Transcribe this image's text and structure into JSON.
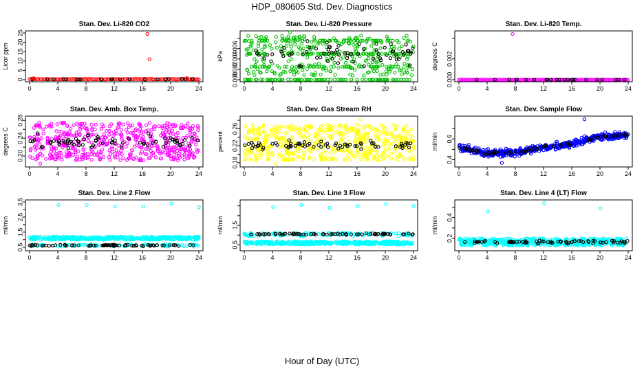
{
  "page": {
    "title": "HDP_080605  Std. Dev. Diagnostics",
    "xlabel": "Hour of Day (UTC)"
  },
  "chart_data": [
    {
      "type": "scatter",
      "title": "Stan. Dev. Li-820 CO2",
      "ylabel": "Licor ppm",
      "xlim": [
        0,
        24
      ],
      "xticks": [
        0,
        4,
        8,
        12,
        16,
        20,
        24
      ],
      "ylim": [
        0,
        25
      ],
      "yticks": [
        0,
        5,
        10,
        15,
        20,
        25
      ],
      "color": "#ff0000",
      "baseline": {
        "mean": 0.3,
        "spread": 0.3,
        "count": 120
      },
      "extra_points": [
        {
          "x": 16.7,
          "y": 24.5
        },
        {
          "x": 17.0,
          "y": 11.0
        },
        {
          "x": 22.3,
          "y": 0.9
        },
        {
          "x": 0.6,
          "y": 0.8
        }
      ],
      "black": {
        "mean": 0.2,
        "spread": 0.2,
        "count": 22
      }
    },
    {
      "type": "scatter",
      "title": "Stan. Dev. Li-820 Pressure",
      "ylabel": "kPa",
      "xlim": [
        0,
        24
      ],
      "xticks": [
        0,
        4,
        8,
        12,
        16,
        20,
        24
      ],
      "ylim": [
        0,
        0.009
      ],
      "yticks": [
        0,
        0.002,
        0.004,
        0.006,
        0.008
      ],
      "ytick_labels": [
        "0.000",
        "0.002",
        "0.004",
        "0.006",
        ""
      ],
      "color": "#00c000",
      "levels": [
        0,
        0.0025,
        0.005,
        0.0075
      ],
      "band": {
        "count": 420,
        "min": 0.0008,
        "max": 0.0085
      },
      "floor_count": 90,
      "black": {
        "mean": 0.005,
        "spread": 0.0035,
        "count": 70
      },
      "extra_points": [
        {
          "x": 6.5,
          "y": 0.0092
        }
      ]
    },
    {
      "type": "scatter",
      "title": "Stan. Dev. Li-820 Temp.",
      "ylabel": "degrees C",
      "xlim": [
        0,
        24
      ],
      "xticks": [
        0,
        4,
        8,
        12,
        16,
        20,
        24
      ],
      "ylim": [
        0,
        0.0045
      ],
      "yticks": [
        0,
        0.002,
        0.004
      ],
      "ytick_labels": [
        "0.000",
        "0.002",
        ""
      ],
      "color": "#ff00ff",
      "baseline": {
        "mean": 0.0,
        "spread": 1e-05,
        "count": 140
      },
      "extra_points": [
        {
          "x": 7.6,
          "y": 0.0044
        }
      ],
      "black": {
        "mean": 0.0,
        "spread": 1e-05,
        "count": 25
      }
    },
    {
      "type": "scatter",
      "title": "Stan. Dev. Amb. Box Temp.",
      "ylabel": "degrees C",
      "xlim": [
        0,
        24
      ],
      "xticks": [
        0,
        4,
        8,
        12,
        16,
        20,
        24
      ],
      "ylim": [
        0.18,
        0.285
      ],
      "yticks": [
        0.2,
        0.22,
        0.24,
        0.26,
        0.28
      ],
      "ytick_labels": [
        "0.20",
        "",
        "0.24",
        "",
        "0.28"
      ],
      "color": "#ff00ff",
      "band": {
        "count": 520,
        "min": 0.19,
        "max": 0.275
      },
      "black": {
        "mean": 0.233,
        "spread": 0.02,
        "count": 70
      },
      "extra_points": [
        {
          "x": 1.5,
          "y": 0.183
        }
      ]
    },
    {
      "type": "scatter",
      "title": "Stan. Dev. Gas Stream RH",
      "ylabel": "percent",
      "xlim": [
        0,
        24
      ],
      "xticks": [
        0,
        4,
        8,
        12,
        16,
        20,
        24
      ],
      "ylim": [
        0.175,
        0.285
      ],
      "yticks": [
        0.18,
        0.2,
        0.22,
        0.24,
        0.26,
        0.28
      ],
      "ytick_labels": [
        "0.18",
        "",
        "0.22",
        "",
        "0.26",
        ""
      ],
      "color": "#ffff00",
      "band": {
        "count": 520,
        "min": 0.185,
        "max": 0.27
      },
      "black": {
        "mean": 0.222,
        "spread": 0.015,
        "count": 70
      },
      "extra_points": [
        {
          "x": 4.5,
          "y": 0.177
        },
        {
          "x": 16.5,
          "y": 0.282
        }
      ]
    },
    {
      "type": "scatter",
      "title": "Stan. Dev. Sample Flow",
      "ylabel": "ml/min",
      "xlim": [
        0,
        24
      ],
      "xticks": [
        0,
        4,
        8,
        12,
        16,
        20,
        24
      ],
      "ylim": [
        0.35,
        0.8
      ],
      "yticks": [
        0.4,
        0.5,
        0.6,
        0.7
      ],
      "ytick_labels": [
        "0.4",
        "",
        "0.6",
        ""
      ],
      "color": "#0000ff",
      "trend": [
        [
          0,
          0.52
        ],
        [
          4,
          0.46
        ],
        [
          8,
          0.47
        ],
        [
          12,
          0.52
        ],
        [
          16,
          0.55
        ],
        [
          20,
          0.62
        ],
        [
          24,
          0.64
        ]
      ],
      "trend_spread": 0.05,
      "band_count": 520,
      "black": {
        "spread": 0.02,
        "count": 70
      },
      "extra_points": [
        {
          "x": 17.8,
          "y": 0.79
        },
        {
          "x": 6.1,
          "y": 0.37
        }
      ]
    },
    {
      "type": "scatter",
      "title": "Stan. Dev. Line 2 Flow",
      "ylabel": "ml/min",
      "xlim": [
        0,
        24
      ],
      "xticks": [
        0,
        4,
        8,
        12,
        16,
        20,
        24
      ],
      "ylim": [
        0.4,
        3.5
      ],
      "yticks": [
        0.5,
        1.0,
        1.5,
        2.0,
        2.5,
        3.0,
        3.5
      ],
      "ytick_labels": [
        "0.5",
        "",
        "1.5",
        "",
        "2.5",
        "",
        "3.5"
      ],
      "color": "#00ffff",
      "band": {
        "count": 420,
        "min": 1.0,
        "max": 1.2
      },
      "black": {
        "mean": 0.62,
        "spread": 0.06,
        "count": 70
      },
      "band2": {
        "count": 80,
        "min": 0.55,
        "max": 0.7
      },
      "extra_points": [
        {
          "x": 4.1,
          "y": 3.3
        },
        {
          "x": 8.1,
          "y": 3.3
        },
        {
          "x": 12.1,
          "y": 3.2
        },
        {
          "x": 16.1,
          "y": 3.2
        },
        {
          "x": 20.1,
          "y": 3.4
        },
        {
          "x": 24.0,
          "y": 3.15
        }
      ]
    },
    {
      "type": "scatter",
      "title": "Stan. Dev. Line 3 Flow",
      "ylabel": "ml/min",
      "xlim": [
        0,
        24
      ],
      "xticks": [
        0,
        4,
        8,
        12,
        16,
        20,
        24
      ],
      "ylim": [
        0.3,
        2.7
      ],
      "yticks": [
        0.5,
        1.0,
        1.5,
        2.0,
        2.5
      ],
      "ytick_labels": [
        "0.5",
        "",
        "1.5",
        "",
        ""
      ],
      "color": "#00ffff",
      "band": {
        "count": 420,
        "min": 0.52,
        "max": 0.68
      },
      "black": {
        "mean": 1.05,
        "spread": 0.05,
        "count": 70
      },
      "band2": {
        "count": 120,
        "min": 0.95,
        "max": 1.12
      },
      "extra_points": [
        {
          "x": 4.1,
          "y": 2.45
        },
        {
          "x": 8.1,
          "y": 2.55
        },
        {
          "x": 12.1,
          "y": 2.4
        },
        {
          "x": 16.1,
          "y": 2.5
        },
        {
          "x": 20.1,
          "y": 2.6
        },
        {
          "x": 24.0,
          "y": 2.5
        }
      ]
    },
    {
      "type": "scatter",
      "title": "Stan. Dev. Line 4 (LT) Flow",
      "ylabel": "ml/min",
      "xlim": [
        0,
        24
      ],
      "xticks": [
        0,
        4,
        8,
        12,
        16,
        20,
        24
      ],
      "ylim": [
        0.1,
        0.55
      ],
      "yticks": [
        0.2,
        0.3,
        0.4,
        0.5
      ],
      "ytick_labels": [
        "0.2",
        "",
        "0.4",
        ""
      ],
      "color": "#00ffff",
      "band": {
        "count": 460,
        "min": 0.13,
        "max": 0.2
      },
      "black": {
        "mean": 0.165,
        "spread": 0.02,
        "count": 70
      },
      "extra_points": [
        {
          "x": 4.1,
          "y": 0.46
        },
        {
          "x": 12.1,
          "y": 0.54
        },
        {
          "x": 20.1,
          "y": 0.49
        }
      ]
    }
  ]
}
